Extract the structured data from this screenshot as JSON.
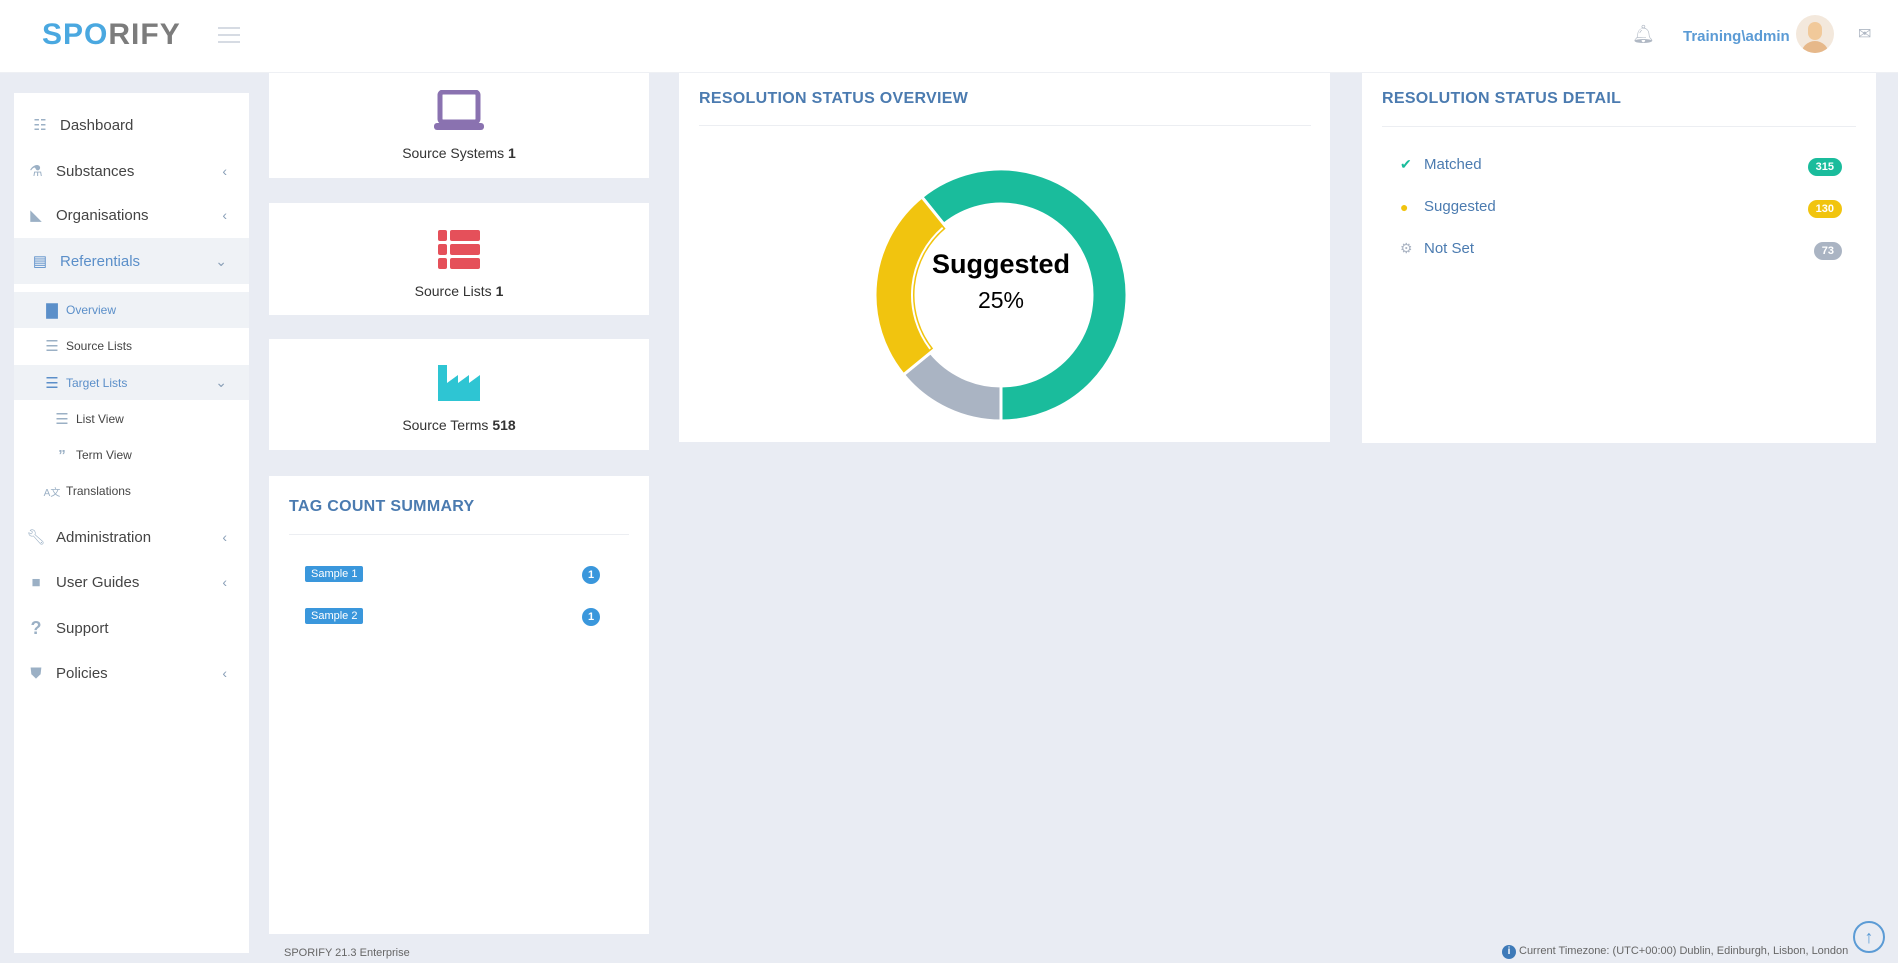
{
  "header": {
    "logo_part1": "SP",
    "logo_part2": "O",
    "logo_part3": "RIFY",
    "username": "Training\\admin",
    "icons": [
      "menu-icon",
      "bell-icon",
      "avatar",
      "chat-icon"
    ]
  },
  "sidebar": {
    "items": [
      {
        "label": "Dashboard",
        "icon": "grid-icon"
      },
      {
        "label": "Substances",
        "icon": "flask-icon"
      },
      {
        "label": "Organisations",
        "icon": "industry-icon"
      },
      {
        "label": "Referentials",
        "icon": "list-alt-icon"
      },
      {
        "label": "Overview",
        "icon": "bar-chart-icon"
      },
      {
        "label": "Source Lists",
        "icon": "th-list-icon"
      },
      {
        "label": "Target Lists",
        "icon": "list-icon"
      },
      {
        "label": "List View",
        "icon": "list-icon"
      },
      {
        "label": "Term View",
        "icon": "quote-icon"
      },
      {
        "label": "Translations",
        "icon": "language-icon"
      },
      {
        "label": "Administration",
        "icon": "wrench-icon"
      },
      {
        "label": "User Guides",
        "icon": "book-icon"
      },
      {
        "label": "Support",
        "icon": "question-icon"
      },
      {
        "label": "Policies",
        "icon": "shield-icon"
      }
    ]
  },
  "stats": [
    {
      "label": "Source Systems",
      "value": "1",
      "color": "#8a72b0"
    },
    {
      "label": "Source Lists",
      "value": "1",
      "color": "#e5505a"
    },
    {
      "label": "Source Terms",
      "value": "518",
      "color": "#2ec5d3"
    }
  ],
  "tag_summary": {
    "title": "TAG COUNT SUMMARY",
    "tags": [
      {
        "label": "Sample 1",
        "count": "1"
      },
      {
        "label": "Sample 2",
        "count": "1"
      }
    ]
  },
  "overview": {
    "title": "RESOLUTION STATUS OVERVIEW",
    "center_label": "Suggested",
    "center_value": "25%"
  },
  "chart_data": {
    "type": "pie",
    "donut": true,
    "categories": [
      "Matched",
      "Not Set",
      "Suggested"
    ],
    "values": [
      315,
      73,
      130
    ],
    "colors": [
      "#1abc9c",
      "#aab4c3",
      "#f1c40f"
    ],
    "highlighted": "Suggested"
  },
  "detail": {
    "title": "RESOLUTION STATUS DETAIL",
    "items": [
      {
        "label": "Matched",
        "count": "315",
        "color": "#1abc9c",
        "icon": "check-circle-icon"
      },
      {
        "label": "Suggested",
        "count": "130",
        "color": "#f1c40f",
        "icon": "lightbulb-icon"
      },
      {
        "label": "Not Set",
        "count": "73",
        "color": "#aab4c3",
        "icon": "gear-icon"
      }
    ]
  },
  "footer": {
    "version": "SPORIFY 21.3 Enterprise",
    "timezone": "Current Timezone: (UTC+00:00) Dublin, Edinburgh, Lisbon, London"
  }
}
